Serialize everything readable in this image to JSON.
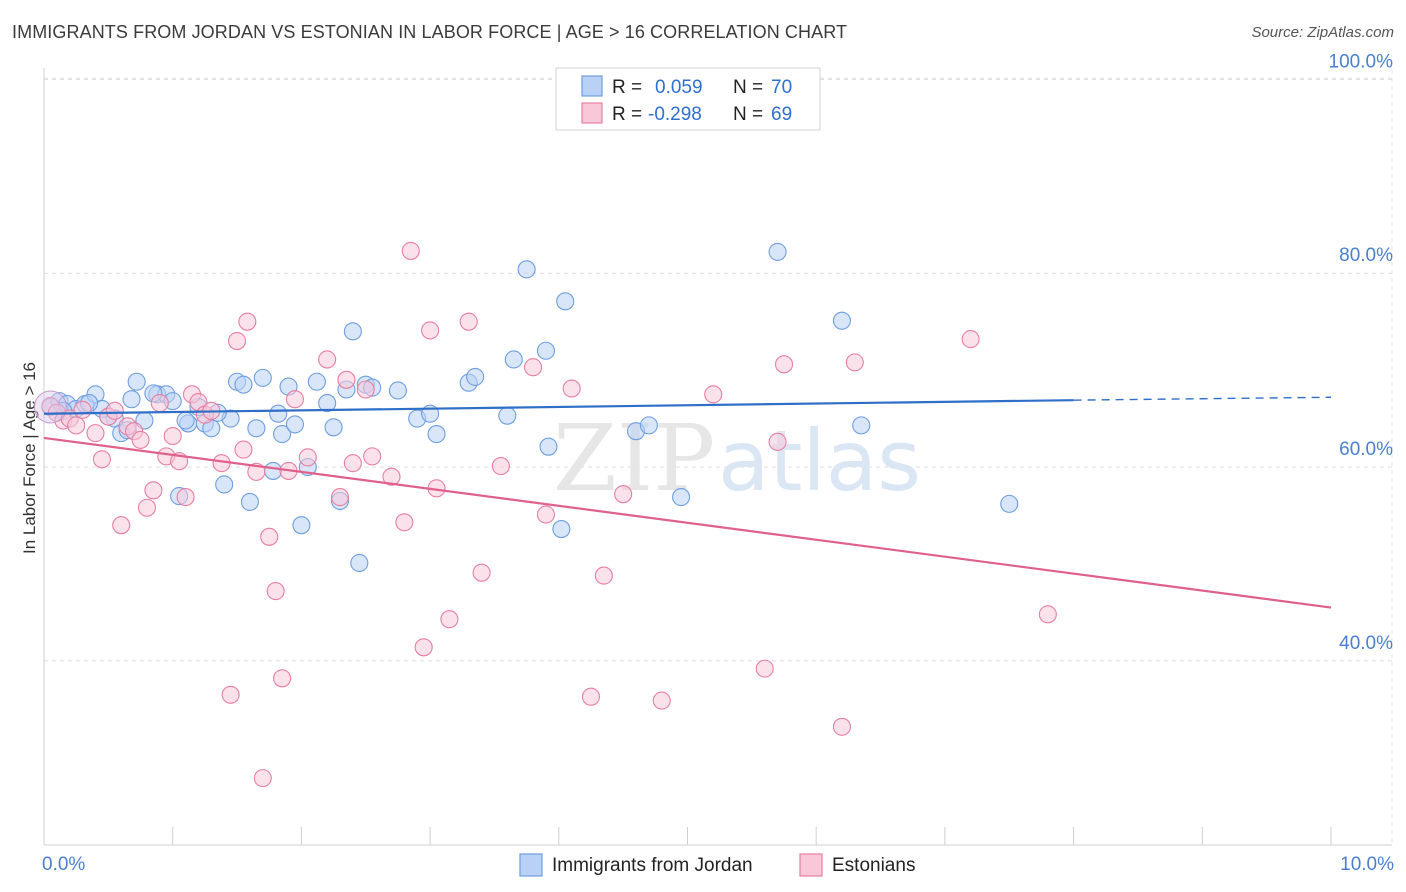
{
  "header": {
    "title": "IMMIGRANTS FROM JORDAN VS ESTONIAN IN LABOR FORCE | AGE > 16 CORRELATION CHART",
    "source": "Source: ZipAtlas.com"
  },
  "watermark": {
    "zip": "ZIP",
    "atlas": "atlas"
  },
  "chart_data": {
    "type": "scatter",
    "title": "IMMIGRANTS FROM JORDAN VS ESTONIAN IN LABOR FORCE | AGE > 16 CORRELATION CHART",
    "xlabel": "",
    "ylabel": "In Labor Force | Age > 16",
    "xlim": [
      0,
      10
    ],
    "ylim": [
      21,
      102
    ],
    "x_tick_labels": {
      "min": "0.0%",
      "max": "10.0%"
    },
    "y_ticks": [
      {
        "value": 100,
        "label": "100.0%"
      },
      {
        "value": 80,
        "label": "80.0%"
      },
      {
        "value": 60,
        "label": "60.0%"
      },
      {
        "value": 40,
        "label": "40.0%"
      }
    ],
    "grid": true,
    "legend_position": "top-center",
    "legend": [
      {
        "r_label": "R =",
        "r_value": "0.059",
        "n_label": "N =",
        "n_value": "70",
        "color": "#6f9ee0",
        "fill": "#b9d1f5"
      },
      {
        "r_label": "R =",
        "r_value": "-0.298",
        "n_label": "N =",
        "n_value": "69",
        "color": "#e77fa1",
        "fill": "#f8c8d8"
      }
    ],
    "series": [
      {
        "name": "Immigrants from Jordan",
        "color": "#6f9ee0",
        "fill": "#b9d1f5",
        "trend": {
          "x0": 0,
          "y0": 65.5,
          "x1": 8,
          "y1": 66.9,
          "dash_to_x": 10,
          "dash_to_y": 67.2,
          "color": "#2f6fc8"
        },
        "points": [
          [
            0.05,
            66.2
          ],
          [
            0.12,
            66.8
          ],
          [
            0.18,
            66.5
          ],
          [
            0.25,
            66.0
          ],
          [
            0.32,
            66.5
          ],
          [
            0.4,
            67.5
          ],
          [
            0.45,
            66.0
          ],
          [
            0.55,
            65.0
          ],
          [
            0.6,
            63.5
          ],
          [
            0.68,
            67.0
          ],
          [
            0.72,
            68.8
          ],
          [
            0.78,
            64.8
          ],
          [
            0.88,
            67.5
          ],
          [
            0.95,
            67.5
          ],
          [
            1.0,
            66.8
          ],
          [
            1.05,
            57.0
          ],
          [
            1.12,
            64.5
          ],
          [
            1.2,
            66.2
          ],
          [
            1.25,
            64.5
          ],
          [
            1.3,
            64.0
          ],
          [
            1.4,
            58.2
          ],
          [
            1.45,
            65.0
          ],
          [
            1.5,
            68.8
          ],
          [
            1.55,
            68.5
          ],
          [
            1.6,
            56.4
          ],
          [
            1.65,
            64.0
          ],
          [
            1.7,
            69.2
          ],
          [
            1.78,
            59.6
          ],
          [
            1.82,
            65.5
          ],
          [
            1.85,
            63.4
          ],
          [
            1.9,
            68.3
          ],
          [
            2.0,
            54.0
          ],
          [
            2.05,
            60.0
          ],
          [
            2.12,
            68.8
          ],
          [
            2.2,
            66.6
          ],
          [
            2.25,
            64.1
          ],
          [
            2.3,
            56.5
          ],
          [
            2.35,
            68.0
          ],
          [
            2.4,
            74.0
          ],
          [
            2.5,
            68.5
          ],
          [
            1.95,
            64.4
          ],
          [
            2.45,
            50.1
          ],
          [
            2.55,
            68.2
          ],
          [
            2.75,
            67.9
          ],
          [
            2.9,
            65.0
          ],
          [
            3.0,
            65.5
          ],
          [
            3.05,
            63.4
          ],
          [
            3.3,
            68.7
          ],
          [
            3.35,
            69.3
          ],
          [
            3.6,
            65.3
          ],
          [
            3.65,
            71.1
          ],
          [
            3.75,
            80.4
          ],
          [
            3.9,
            72.0
          ],
          [
            3.92,
            62.1
          ],
          [
            4.02,
            53.6
          ],
          [
            4.05,
            77.1
          ],
          [
            4.6,
            63.7
          ],
          [
            4.7,
            64.3
          ],
          [
            4.95,
            56.9
          ],
          [
            5.7,
            82.2
          ],
          [
            6.2,
            75.1
          ],
          [
            6.35,
            64.3
          ],
          [
            7.5,
            56.2
          ],
          [
            0.15,
            65.8
          ],
          [
            0.35,
            66.6
          ],
          [
            0.5,
            65.2
          ],
          [
            0.65,
            63.8
          ],
          [
            0.85,
            67.6
          ],
          [
            1.1,
            64.8
          ],
          [
            1.35,
            65.6
          ]
        ]
      },
      {
        "name": "Estonians",
        "color": "#e77fa1",
        "fill": "#f8c8d8",
        "trend": {
          "x0": 0,
          "y0": 63.0,
          "x1": 10,
          "y1": 45.5,
          "color": "#e0608c"
        },
        "points": [
          [
            0.05,
            66.3
          ],
          [
            0.1,
            65.6
          ],
          [
            0.15,
            64.8
          ],
          [
            0.2,
            65.0
          ],
          [
            0.25,
            64.3
          ],
          [
            0.3,
            65.9
          ],
          [
            0.4,
            63.5
          ],
          [
            0.45,
            60.8
          ],
          [
            0.5,
            65.2
          ],
          [
            0.55,
            65.8
          ],
          [
            0.6,
            54.0
          ],
          [
            0.65,
            64.2
          ],
          [
            0.7,
            63.7
          ],
          [
            0.75,
            62.8
          ],
          [
            0.8,
            55.8
          ],
          [
            0.85,
            57.6
          ],
          [
            0.9,
            66.6
          ],
          [
            0.95,
            61.1
          ],
          [
            1.0,
            63.2
          ],
          [
            1.05,
            60.6
          ],
          [
            1.1,
            56.9
          ],
          [
            1.15,
            67.5
          ],
          [
            1.2,
            66.7
          ],
          [
            1.25,
            65.4
          ],
          [
            1.3,
            65.8
          ],
          [
            1.38,
            60.4
          ],
          [
            1.45,
            36.5
          ],
          [
            1.5,
            73.0
          ],
          [
            1.55,
            61.8
          ],
          [
            1.58,
            75.0
          ],
          [
            1.65,
            59.5
          ],
          [
            1.7,
            27.9
          ],
          [
            1.75,
            52.8
          ],
          [
            1.8,
            47.2
          ],
          [
            1.85,
            38.2
          ],
          [
            1.9,
            59.6
          ],
          [
            1.95,
            67.0
          ],
          [
            2.05,
            61.0
          ],
          [
            2.2,
            71.1
          ],
          [
            2.3,
            56.9
          ],
          [
            2.35,
            69.0
          ],
          [
            2.4,
            60.4
          ],
          [
            2.5,
            68.0
          ],
          [
            2.55,
            61.1
          ],
          [
            2.7,
            59.0
          ],
          [
            2.8,
            54.3
          ],
          [
            2.85,
            82.3
          ],
          [
            2.95,
            41.4
          ],
          [
            3.0,
            74.1
          ],
          [
            3.05,
            57.8
          ],
          [
            3.15,
            44.3
          ],
          [
            3.3,
            75.0
          ],
          [
            3.4,
            49.1
          ],
          [
            3.55,
            60.1
          ],
          [
            3.8,
            70.3
          ],
          [
            3.9,
            55.1
          ],
          [
            4.1,
            68.1
          ],
          [
            4.25,
            36.3
          ],
          [
            4.35,
            48.8
          ],
          [
            4.5,
            57.2
          ],
          [
            4.8,
            35.9
          ],
          [
            5.2,
            67.5
          ],
          [
            5.6,
            39.2
          ],
          [
            5.7,
            62.6
          ],
          [
            5.75,
            70.6
          ],
          [
            6.2,
            33.2
          ],
          [
            6.3,
            70.8
          ],
          [
            7.2,
            73.2
          ],
          [
            7.8,
            44.8
          ]
        ]
      }
    ]
  },
  "bottom_legend": [
    {
      "label": "Immigrants from Jordan",
      "color": "#6f9ee0",
      "fill": "#b9d1f5"
    },
    {
      "label": "Estonians",
      "color": "#e77fa1",
      "fill": "#f8c8d8"
    }
  ]
}
